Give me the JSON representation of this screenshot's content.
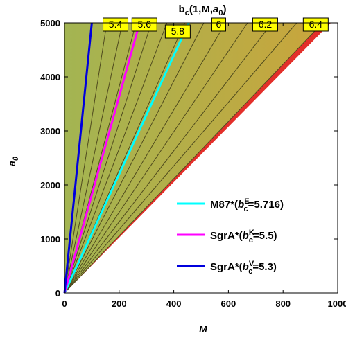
{
  "chart_data": {
    "type": "contour",
    "title": {
      "base": "b",
      "sub": "c",
      "rest": "(1,M,",
      "arg": "a",
      "arg_sub": "0",
      "close": ")"
    },
    "xlabel": "M",
    "ylabel": {
      "base": "a",
      "sub": "0"
    },
    "xlim": [
      0,
      1000
    ],
    "ylim": [
      0,
      5000
    ],
    "x_ticks": [
      0,
      200,
      400,
      600,
      800,
      1000
    ],
    "y_ticks": [
      0,
      1000,
      2000,
      3000,
      4000,
      5000
    ],
    "x_tick_labels": [
      "0",
      "200",
      "400",
      "600",
      "800",
      "1000"
    ],
    "y_tick_labels": [
      "0",
      "1000",
      "2000",
      "3000",
      "4000",
      "5000"
    ],
    "fill_colors": {
      "low": "#a3b552",
      "high": "#c9a53c",
      "edge": "#e32f2a",
      "line": "#4f4a1e",
      "label_bg": "#ffff00"
    },
    "contours": [
      {
        "label": "",
        "x_at_top": 155
      },
      {
        "label": "5.4",
        "x_at_top": 212
      },
      {
        "label": "",
        "x_at_top": 262
      },
      {
        "label": "5.6",
        "x_at_top": 318
      },
      {
        "label": "",
        "x_at_top": 375
      },
      {
        "label": "5.8",
        "x_at_top": 440
      },
      {
        "label": "",
        "x_at_top": 510
      },
      {
        "label": "6",
        "x_at_top": 590
      },
      {
        "label": "",
        "x_at_top": 670
      },
      {
        "label": "6.2",
        "x_at_top": 760
      },
      {
        "label": "",
        "x_at_top": 850
      },
      {
        "label": "6.4",
        "x_at_top": 945
      }
    ],
    "series": [
      {
        "name": "M87*",
        "sym": "b",
        "sub": "c",
        "sup": "E",
        "value": "=5.716)",
        "color": "#00ffff",
        "x_at_top": 455
      },
      {
        "name": "SgrA*",
        "sym": "b",
        "sub": "c",
        "sup": "K",
        "value": "=5.5)",
        "color": "#ff00ff",
        "x_at_top": 275
      },
      {
        "name": "SgrA*",
        "sym": "b",
        "sub": "c",
        "sup": "V",
        "value": "=5.3)",
        "color": "#0000dd",
        "x_at_top": 100
      }
    ]
  }
}
